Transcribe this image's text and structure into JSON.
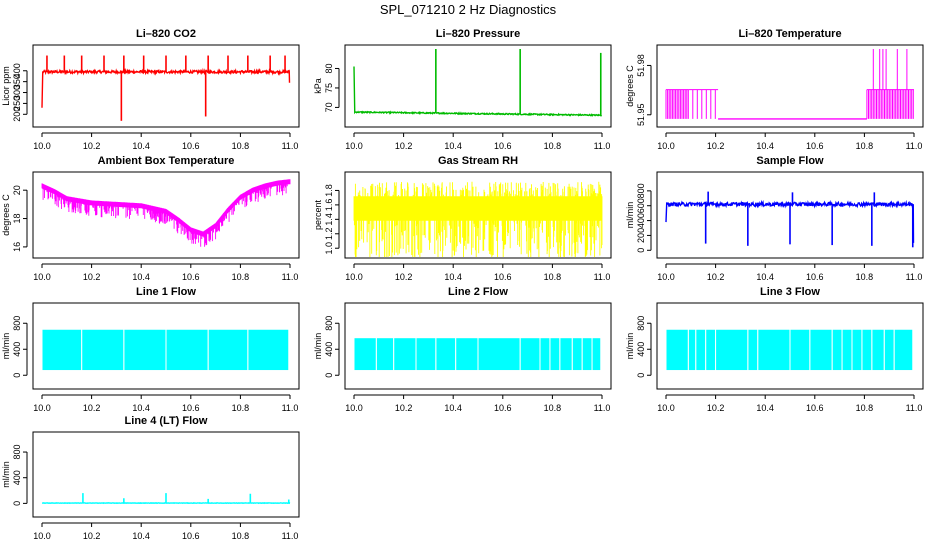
{
  "figure_title": "SPL_071210  2 Hz Diagnostics",
  "chart_data": [
    {
      "id": "co2",
      "type": "line",
      "title": "Li–820 CO2",
      "xlabel": "",
      "ylabel": "Licor ppm",
      "color": "#ff0000",
      "xlim": [
        10.0,
        11.0
      ],
      "ylim": [
        160,
        500
      ],
      "xticks": [
        "10.0",
        "10.2",
        "10.4",
        "10.6",
        "10.8",
        "11.0"
      ],
      "xtick_values": [
        10.0,
        10.2,
        10.4,
        10.6,
        10.8,
        11.0
      ],
      "yticks": [
        "200",
        "250",
        "300",
        "350",
        "400"
      ],
      "ytick_values": [
        200,
        250,
        300,
        350,
        400
      ],
      "baseline": 395,
      "noise": 6,
      "sign": 1,
      "start": [
        10.0,
        230
      ],
      "end_value": 345,
      "spikes": [
        {
          "x": 10.02,
          "y": 470
        },
        {
          "x": 10.09,
          "y": 470
        },
        {
          "x": 10.16,
          "y": 470
        },
        {
          "x": 10.25,
          "y": 470
        },
        {
          "x": 10.32,
          "y": 170
        },
        {
          "x": 10.33,
          "y": 470
        },
        {
          "x": 10.41,
          "y": 470
        },
        {
          "x": 10.5,
          "y": 470
        },
        {
          "x": 10.58,
          "y": 470
        },
        {
          "x": 10.66,
          "y": 190
        },
        {
          "x": 10.67,
          "y": 470
        },
        {
          "x": 10.75,
          "y": 470
        },
        {
          "x": 10.83,
          "y": 470
        },
        {
          "x": 10.92,
          "y": 470
        },
        {
          "x": 10.98,
          "y": 470
        }
      ]
    },
    {
      "id": "pressure",
      "type": "line",
      "title": "Li–820 Pressure",
      "xlabel": "",
      "ylabel": "kPa",
      "color": "#00bb00",
      "xlim": [
        10.0,
        11.0
      ],
      "ylim": [
        66,
        85
      ],
      "xticks": [
        "10.0",
        "10.2",
        "10.4",
        "10.6",
        "10.8",
        "11.0"
      ],
      "xtick_values": [
        10.0,
        10.2,
        10.4,
        10.6,
        10.8,
        11.0
      ],
      "yticks": [
        "70",
        "75",
        "80"
      ],
      "ytick_values": [
        70,
        75,
        80
      ],
      "baseline_start": 68.8,
      "baseline_end": 68.0,
      "noise": 0.15,
      "sign": 1,
      "start": [
        10.0,
        80.5
      ],
      "end_value": 68.0,
      "spikes": [
        {
          "x": 10.33,
          "y": 85
        },
        {
          "x": 10.67,
          "y": 85
        },
        {
          "x": 10.995,
          "y": 84
        }
      ]
    },
    {
      "id": "licor_temp",
      "type": "step",
      "title": "Li–820 Temperature",
      "xlabel": "",
      "ylabel": "degrees C",
      "color": "#ff00ff",
      "xlim": [
        10.0,
        11.0
      ],
      "ylim": [
        51.945,
        51.99
      ],
      "xticks": [
        "10.0",
        "10.2",
        "10.4",
        "10.6",
        "10.8",
        "11.0"
      ],
      "xtick_values": [
        10.0,
        10.2,
        10.4,
        10.6,
        10.8,
        11.0
      ],
      "yticks": [
        "51.95",
        "51.98"
      ],
      "ytick_values": [
        51.95,
        51.98
      ],
      "low": 51.9475,
      "mid": 51.9653,
      "high": 51.99,
      "segments": [
        {
          "from": 10.0,
          "to": 10.09,
          "level": "dense"
        },
        {
          "from": 10.09,
          "to": 10.21,
          "level": "sparse"
        },
        {
          "from": 10.21,
          "to": 10.81,
          "level": "low"
        },
        {
          "from": 10.81,
          "to": 11.0,
          "level": "dense-high"
        }
      ]
    },
    {
      "id": "ambient",
      "type": "band",
      "title": "Ambient Box Temperature",
      "xlabel": "",
      "ylabel": "degrees C",
      "color": "#ff00ff",
      "xlim": [
        10.0,
        11.0
      ],
      "ylim": [
        15.5,
        21.0
      ],
      "xticks": [
        "10.0",
        "10.2",
        "10.4",
        "10.6",
        "10.8",
        "11.0"
      ],
      "xtick_values": [
        10.0,
        10.2,
        10.4,
        10.6,
        10.8,
        11.0
      ],
      "yticks": [
        "16",
        "18",
        "20"
      ],
      "ytick_values": [
        16,
        18,
        20
      ],
      "curve_x": [
        10.0,
        10.05,
        10.1,
        10.2,
        10.3,
        10.4,
        10.5,
        10.55,
        10.6,
        10.65,
        10.7,
        10.75,
        10.8,
        10.85,
        10.9,
        10.95,
        11.0
      ],
      "curve_y": [
        20.3,
        19.9,
        19.4,
        19.1,
        19.0,
        18.9,
        18.5,
        17.9,
        17.2,
        16.9,
        17.5,
        18.6,
        19.5,
        20.0,
        20.3,
        20.5,
        20.6
      ],
      "band": 0.35,
      "noise_down": 0.8
    },
    {
      "id": "rh",
      "type": "band",
      "title": "Gas Stream RH",
      "xlabel": "",
      "ylabel": "percent",
      "color": "#ffff00",
      "xlim": [
        10.0,
        11.0
      ],
      "ylim": [
        0.92,
        2.0
      ],
      "xticks": [
        "10.0",
        "10.2",
        "10.4",
        "10.6",
        "10.8",
        "11.0"
      ],
      "xtick_values": [
        10.0,
        10.2,
        10.4,
        10.6,
        10.8,
        11.0
      ],
      "yticks": [
        "1.0",
        "1.2",
        "1.4",
        "1.6",
        "1.8"
      ],
      "ytick_values": [
        1.0,
        1.2,
        1.4,
        1.6,
        1.8
      ],
      "curve_x": [
        10.0,
        11.0
      ],
      "curve_y": [
        1.55,
        1.55
      ],
      "band": 0.34,
      "noise_down": 0.55,
      "noise_up": 0.2
    },
    {
      "id": "sample",
      "type": "line",
      "title": "Sample Flow",
      "xlabel": "",
      "ylabel": "ml/min",
      "color": "#0000ff",
      "xlim": [
        10.0,
        11.0
      ],
      "ylim": [
        -50,
        1000
      ],
      "xticks": [
        "10.0",
        "10.2",
        "10.4",
        "10.6",
        "10.8",
        "11.0"
      ],
      "xtick_values": [
        10.0,
        10.2,
        10.4,
        10.6,
        10.8,
        11.0
      ],
      "yticks": [
        "0",
        "200",
        "400",
        "600",
        "800"
      ],
      "ytick_values": [
        0,
        200,
        400,
        600,
        800
      ],
      "baseline": 620,
      "noise": 25,
      "sign": 1,
      "start": [
        10.0,
        380
      ],
      "end_value": 100,
      "spikes": [
        {
          "x": 10.16,
          "y": 90
        },
        {
          "x": 10.17,
          "y": 790
        },
        {
          "x": 10.33,
          "y": 60
        },
        {
          "x": 10.5,
          "y": 80
        },
        {
          "x": 10.51,
          "y": 780
        },
        {
          "x": 10.67,
          "y": 70
        },
        {
          "x": 10.83,
          "y": 60
        },
        {
          "x": 10.84,
          "y": 780
        },
        {
          "x": 10.995,
          "y": 40
        }
      ]
    },
    {
      "id": "line1",
      "type": "block",
      "title": "Line 1 Flow",
      "xlabel": "",
      "ylabel": "ml/min",
      "color": "#00ffff",
      "xlim": [
        10.0,
        11.0
      ],
      "ylim": [
        -150,
        1050
      ],
      "xticks": [
        "10.0",
        "10.2",
        "10.4",
        "10.6",
        "10.8",
        "11.0"
      ],
      "xtick_values": [
        10.0,
        10.2,
        10.4,
        10.6,
        10.8,
        11.0
      ],
      "yticks": [
        "0",
        "400",
        "800"
      ],
      "ytick_values": [
        0,
        400,
        800
      ],
      "low": 80,
      "high": 700,
      "gaps": [
        10.16,
        10.33,
        10.5,
        10.67,
        10.83
      ]
    },
    {
      "id": "line2",
      "type": "block",
      "title": "Line 2 Flow",
      "xlabel": "",
      "ylabel": "ml/min",
      "color": "#00ffff",
      "xlim": [
        10.0,
        11.0
      ],
      "ylim": [
        -150,
        1050
      ],
      "xticks": [
        "10.0",
        "10.2",
        "10.4",
        "10.6",
        "10.8",
        "11.0"
      ],
      "xtick_values": [
        10.0,
        10.2,
        10.4,
        10.6,
        10.8,
        11.0
      ],
      "yticks": [
        "0",
        "400",
        "800"
      ],
      "ytick_values": [
        0,
        400,
        800
      ],
      "low": 80,
      "high": 570,
      "gaps": [
        10.09,
        10.16,
        10.25,
        10.33,
        10.41,
        10.5,
        10.67,
        10.75,
        10.79,
        10.83,
        10.88,
        10.92,
        10.96
      ]
    },
    {
      "id": "line3",
      "type": "block",
      "title": "Line 3 Flow",
      "xlabel": "",
      "ylabel": "ml/min",
      "color": "#00ffff",
      "xlim": [
        10.0,
        11.0
      ],
      "ylim": [
        -150,
        1050
      ],
      "xticks": [
        "10.0",
        "10.2",
        "10.4",
        "10.6",
        "10.8",
        "11.0"
      ],
      "xtick_values": [
        10.0,
        10.2,
        10.4,
        10.6,
        10.8,
        11.0
      ],
      "yticks": [
        "0",
        "400",
        "800"
      ],
      "ytick_values": [
        0,
        400,
        800
      ],
      "low": 80,
      "high": 700,
      "gaps": [
        10.09,
        10.12,
        10.16,
        10.2,
        10.33,
        10.37,
        10.5,
        10.58,
        10.67,
        10.71,
        10.75,
        10.79,
        10.83,
        10.88,
        10.92
      ]
    },
    {
      "id": "line4",
      "type": "line",
      "title": "Line 4 (LT) Flow",
      "xlabel": "",
      "ylabel": "ml/min",
      "color": "#00ffff",
      "xlim": [
        10.0,
        11.0
      ],
      "ylim": [
        -150,
        1050
      ],
      "xticks": [
        "10.0",
        "10.2",
        "10.4",
        "10.6",
        "10.8",
        "11.0"
      ],
      "xtick_values": [
        10.0,
        10.2,
        10.4,
        10.6,
        10.8,
        11.0
      ],
      "yticks": [
        "0",
        "400",
        "800"
      ],
      "ytick_values": [
        0,
        400,
        800
      ],
      "baseline": 5,
      "noise": 3,
      "sign": 1,
      "start": [
        10.0,
        5
      ],
      "end_value": 20,
      "spikes": [
        {
          "x": 10.165,
          "y": 160
        },
        {
          "x": 10.33,
          "y": 80
        },
        {
          "x": 10.5,
          "y": 160
        },
        {
          "x": 10.67,
          "y": 70
        },
        {
          "x": 10.84,
          "y": 150
        },
        {
          "x": 10.995,
          "y": 60
        }
      ]
    }
  ]
}
